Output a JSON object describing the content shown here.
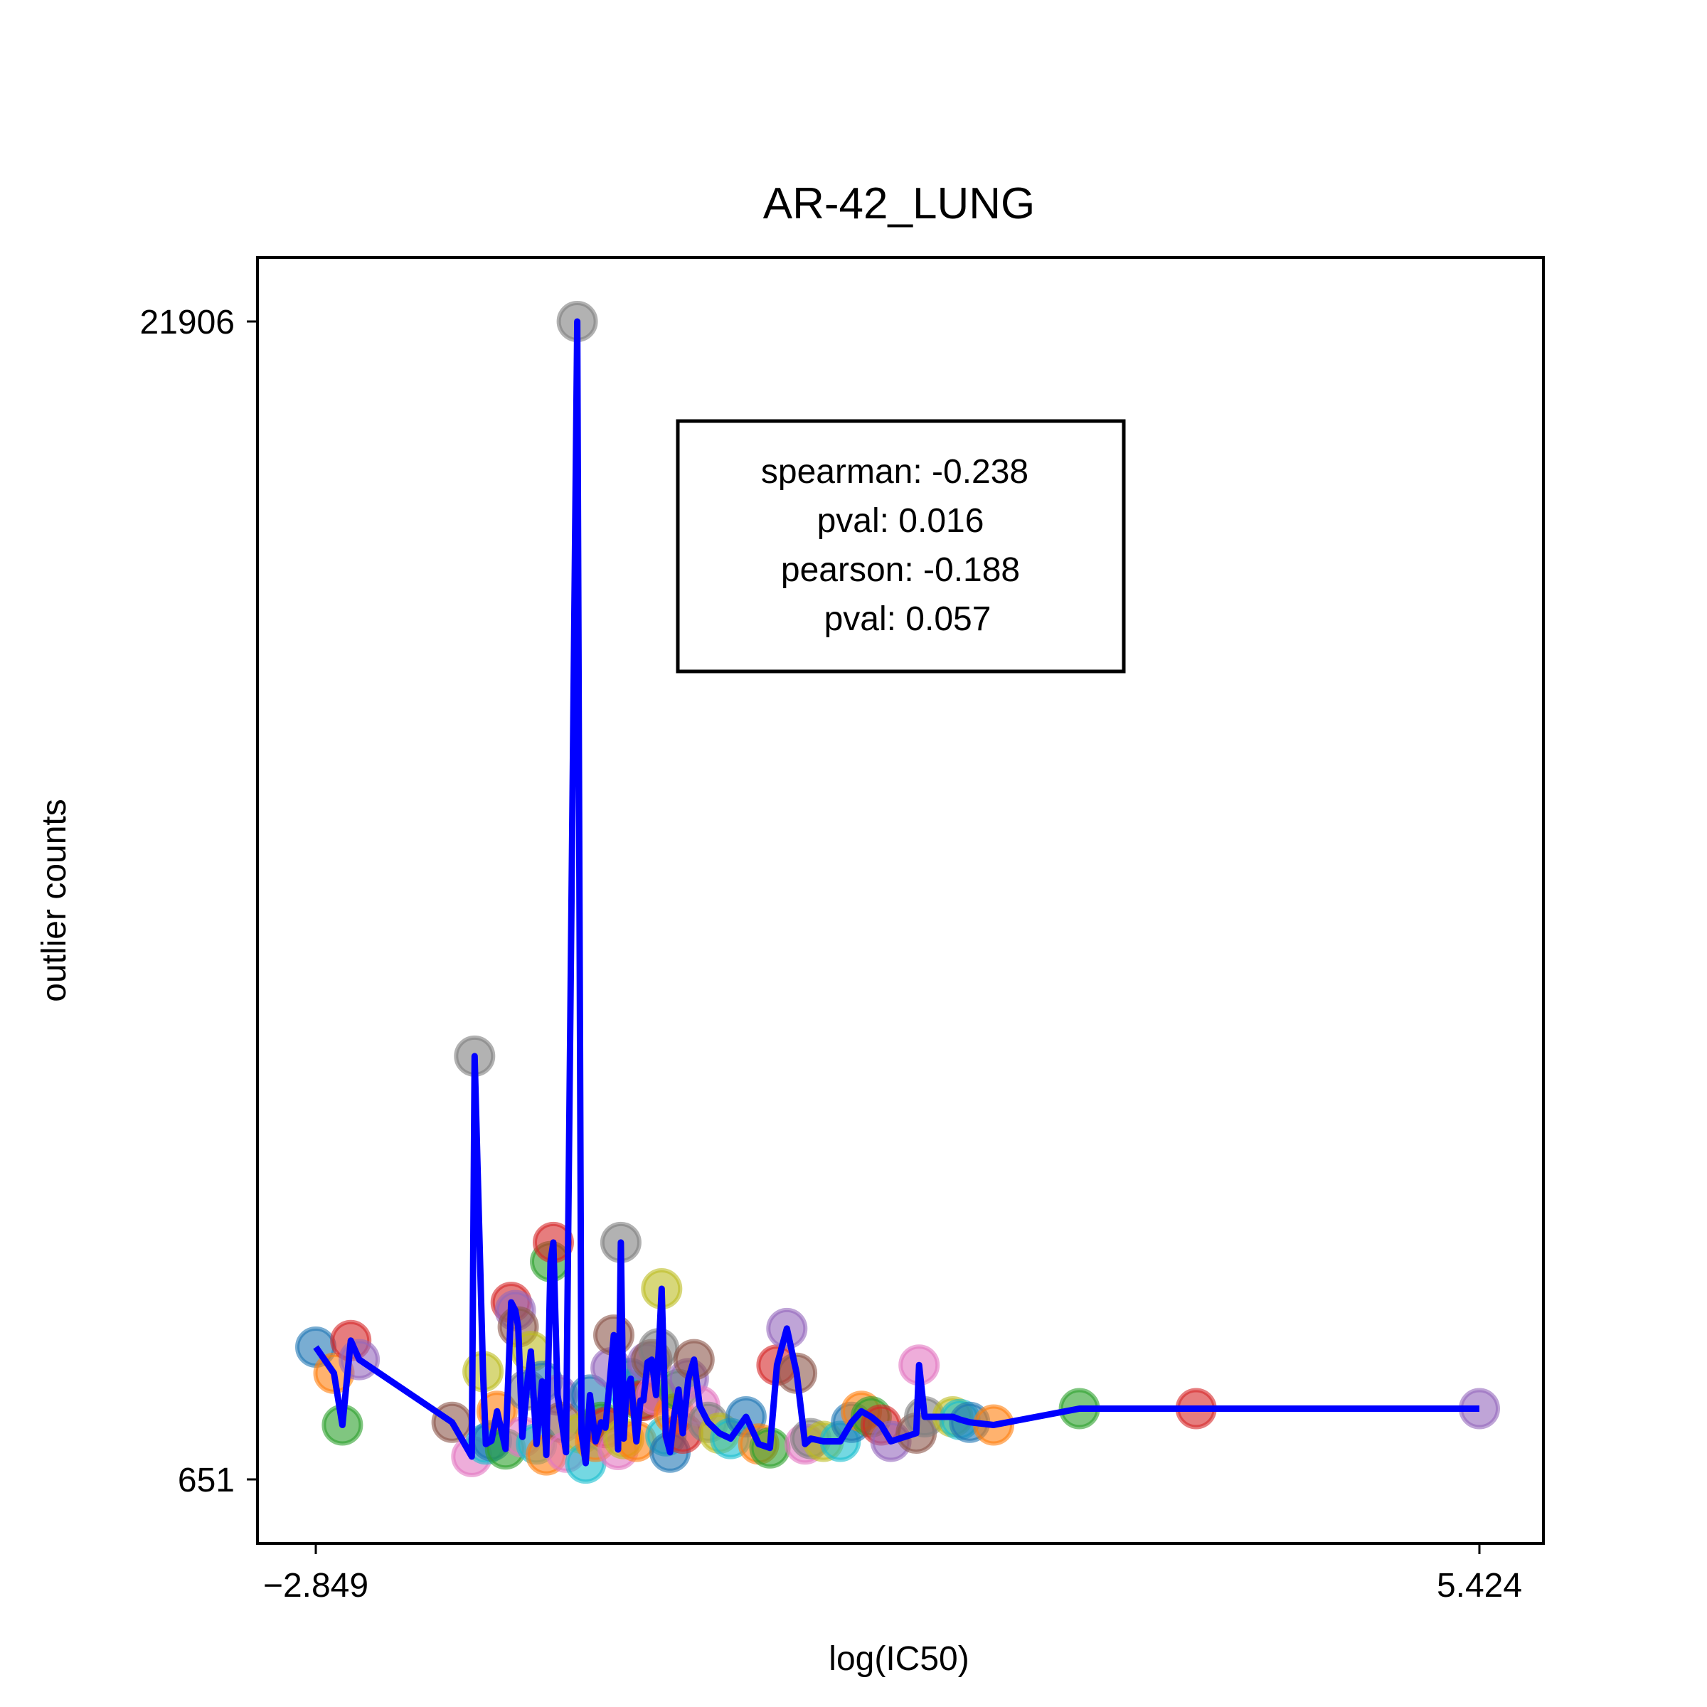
{
  "chart_data": {
    "type": "scatter",
    "title": "AR-42_LUNG",
    "xlabel": "log(IC50)",
    "ylabel": "outlier counts",
    "xlim": [
      -2.849,
      5.424
    ],
    "ylim": [
      651,
      21906
    ],
    "xticks": [
      "−2.849",
      "5.424"
    ],
    "yticks": [
      "21906",
      "651"
    ],
    "grid": false,
    "legend": "none",
    "stats": {
      "spearman": "spearman: -0.238",
      "pval1": "pval: 0.016",
      "pearson": "pearson: -0.188",
      "pval2": "pval: 0.057"
    },
    "line_color": "#0000ff",
    "point_colors": [
      "#1f77b4",
      "#ff7f0e",
      "#2ca02c",
      "#d62728",
      "#9467bd",
      "#8c564b",
      "#e377c2",
      "#7f7f7f",
      "#bcbd22",
      "#17becf"
    ],
    "points": [
      [
        -2.849,
        3080
      ],
      [
        -2.72,
        2600
      ],
      [
        -2.66,
        1650
      ],
      [
        -2.6,
        3200
      ],
      [
        -2.54,
        2850
      ],
      [
        -1.88,
        1700
      ],
      [
        -1.74,
        1070
      ],
      [
        -1.72,
        8420
      ],
      [
        -1.66,
        2630
      ],
      [
        -1.64,
        1300
      ],
      [
        -1.6,
        1360
      ],
      [
        -1.56,
        1900
      ],
      [
        -1.5,
        1210
      ],
      [
        -1.46,
        3900
      ],
      [
        -1.43,
        3750
      ],
      [
        -1.41,
        3450
      ],
      [
        -1.38,
        1430
      ],
      [
        -1.35,
        2290
      ],
      [
        -1.32,
        3000
      ],
      [
        -1.28,
        1300
      ],
      [
        -1.24,
        2450
      ],
      [
        -1.21,
        1100
      ],
      [
        -1.18,
        4650
      ],
      [
        -1.16,
        5000
      ],
      [
        -1.13,
        2200
      ],
      [
        -1.1,
        1700
      ],
      [
        -1.07,
        1150
      ],
      [
        -0.99,
        21906
      ],
      [
        -0.96,
        1500
      ],
      [
        -0.93,
        950
      ],
      [
        -0.9,
        2200
      ],
      [
        -0.86,
        1350
      ],
      [
        -0.82,
        1700
      ],
      [
        -0.79,
        1600
      ],
      [
        -0.75,
        2700
      ],
      [
        -0.73,
        3300
      ],
      [
        -0.7,
        1200
      ],
      [
        -0.68,
        5000
      ],
      [
        -0.66,
        1400
      ],
      [
        -0.64,
        2300
      ],
      [
        -0.61,
        2500
      ],
      [
        -0.57,
        1350
      ],
      [
        -0.54,
        2100
      ],
      [
        -0.52,
        2100
      ],
      [
        -0.49,
        2800
      ],
      [
        -0.46,
        2850
      ],
      [
        -0.43,
        2200
      ],
      [
        -0.41,
        3050
      ],
      [
        -0.39,
        4150
      ],
      [
        -0.36,
        1450
      ],
      [
        -0.33,
        1150
      ],
      [
        -0.3,
        1850
      ],
      [
        -0.27,
        2300
      ],
      [
        -0.24,
        1500
      ],
      [
        -0.2,
        2500
      ],
      [
        -0.16,
        2850
      ],
      [
        -0.12,
        2000
      ],
      [
        -0.06,
        1700
      ],
      [
        0.02,
        1500
      ],
      [
        0.1,
        1400
      ],
      [
        0.21,
        1800
      ],
      [
        0.3,
        1300
      ],
      [
        0.38,
        1230
      ],
      [
        0.43,
        2750
      ],
      [
        0.5,
        3420
      ],
      [
        0.57,
        2600
      ],
      [
        0.63,
        1300
      ],
      [
        0.67,
        1400
      ],
      [
        0.76,
        1350
      ],
      [
        0.88,
        1350
      ],
      [
        0.96,
        1700
      ],
      [
        1.03,
        1900
      ],
      [
        1.1,
        1800
      ],
      [
        1.17,
        1650
      ],
      [
        1.24,
        1350
      ],
      [
        1.42,
        1500
      ],
      [
        1.44,
        2750
      ],
      [
        1.48,
        1800
      ],
      [
        1.68,
        1800
      ],
      [
        1.73,
        1750
      ],
      [
        1.8,
        1700
      ],
      [
        1.97,
        1650
      ],
      [
        2.58,
        1950
      ],
      [
        3.41,
        1950
      ],
      [
        5.424,
        1950
      ]
    ]
  }
}
